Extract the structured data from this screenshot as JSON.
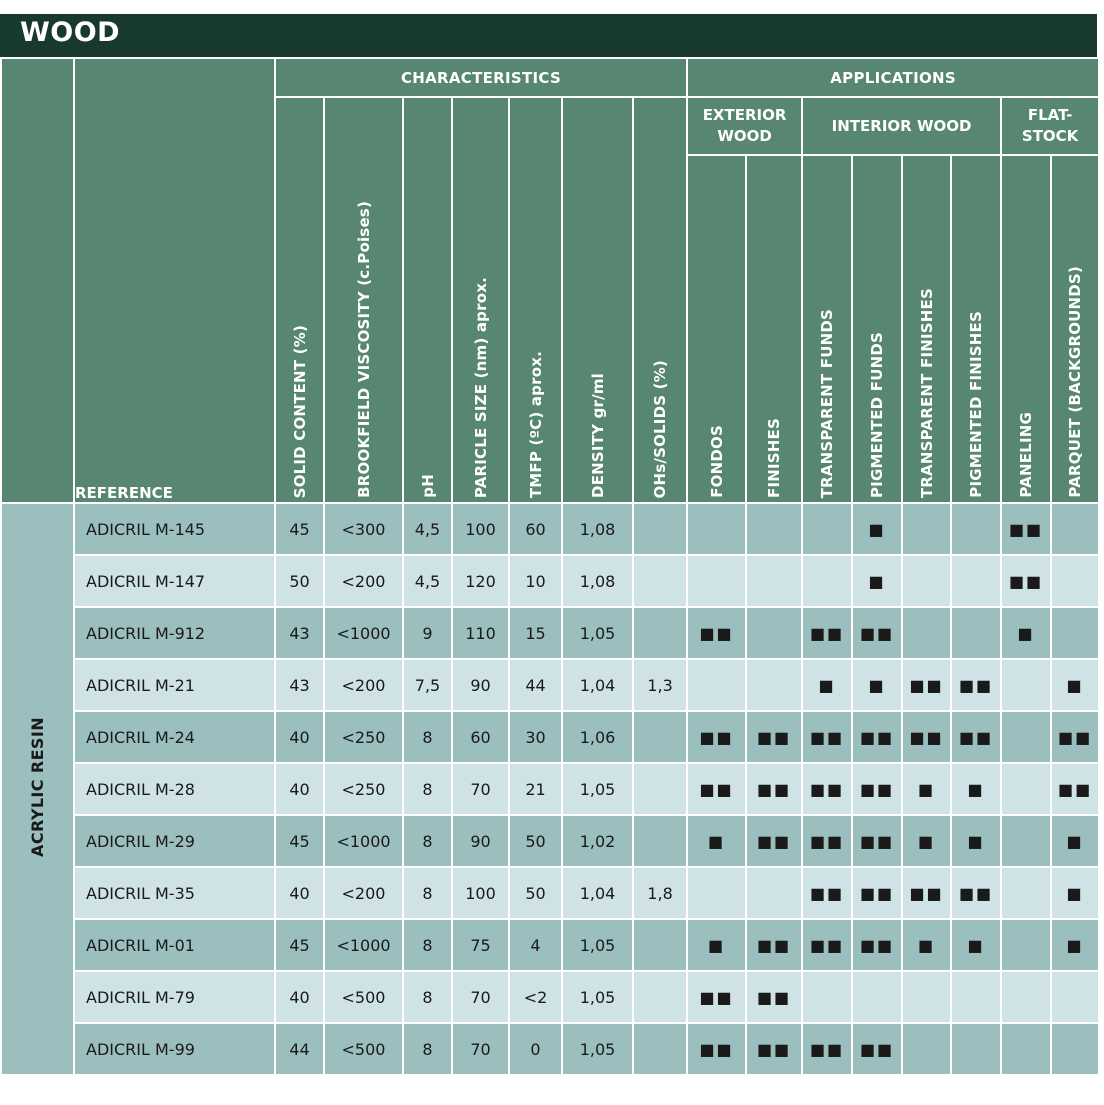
{
  "title": "WOOD",
  "side_label": "ACRYLIC RESIN",
  "headers": {
    "characteristics": "CHARACTERISTICS",
    "applications": "APPLICATIONS",
    "exterior_wood": "EXTERIOR WOOD",
    "interior_wood": "INTERIOR WOOD",
    "flat_stock": "FLAT-STOCK",
    "reference": "REFERENCE"
  },
  "columns": {
    "solid": "SOLID CONTENT (%)",
    "viscosity": "BROOKFIELD VISCOSITY  (c.Poises)",
    "ph": "pH",
    "particle": "PARICLE SIZE (nm) aprox.",
    "tmfp": "TMFP (ºC) aprox.",
    "density": "DENSITY gr/ml",
    "ohs": "OHs/SOLIDS (%)",
    "fondos": "FONDOS",
    "finishes": "FINISHES",
    "transparent_funds": "TRANSPARENT FUNDS",
    "pigmented_funds": "PIGMENTED FUNDS",
    "transparent_finishes": "TRANSPARENT FINISHES",
    "pigmented_finishes": "PIGMENTED FINISHES",
    "paneling": "PANELING",
    "parquet": "PARQUET (BACKGROUNDS)"
  },
  "rows": [
    {
      "ref": "ADICRIL M-145",
      "solid": "45",
      "visc": "<300",
      "ph": "4,5",
      "particle": "100",
      "tmfp": "60",
      "density": "1,08",
      "ohs": "",
      "fondos": "",
      "finishes": "",
      "tf": "",
      "pf": "■",
      "tfin": "",
      "pfin": "",
      "panel": "■■",
      "parquet": ""
    },
    {
      "ref": "ADICRIL M-147",
      "solid": "50",
      "visc": "<200",
      "ph": "4,5",
      "particle": "120",
      "tmfp": "10",
      "density": "1,08",
      "ohs": "",
      "fondos": "",
      "finishes": "",
      "tf": "",
      "pf": "■",
      "tfin": "",
      "pfin": "",
      "panel": "■■",
      "parquet": ""
    },
    {
      "ref": "ADICRIL M-912",
      "solid": "43",
      "visc": "<1000",
      "ph": "9",
      "particle": "110",
      "tmfp": "15",
      "density": "1,05",
      "ohs": "",
      "fondos": "■■",
      "finishes": "",
      "tf": "■■",
      "pf": "■■",
      "tfin": "",
      "pfin": "",
      "panel": "■",
      "parquet": ""
    },
    {
      "ref": "ADICRIL M-21",
      "solid": "43",
      "visc": "<200",
      "ph": "7,5",
      "particle": "90",
      "tmfp": "44",
      "density": "1,04",
      "ohs": "1,3",
      "fondos": "",
      "finishes": "",
      "tf": "■",
      "pf": "■",
      "tfin": "■■",
      "pfin": "■■",
      "panel": "",
      "parquet": "■"
    },
    {
      "ref": "ADICRIL M-24",
      "solid": "40",
      "visc": "<250",
      "ph": "8",
      "particle": "60",
      "tmfp": "30",
      "density": "1,06",
      "ohs": "",
      "fondos": "■■",
      "finishes": "■■",
      "tf": "■■",
      "pf": "■■",
      "tfin": "■■",
      "pfin": "■■",
      "panel": "",
      "parquet": "■■"
    },
    {
      "ref": "ADICRIL M-28",
      "solid": "40",
      "visc": "<250",
      "ph": "8",
      "particle": "70",
      "tmfp": "21",
      "density": "1,05",
      "ohs": "",
      "fondos": "■■",
      "finishes": "■■",
      "tf": "■■",
      "pf": "■■",
      "tfin": "■",
      "pfin": "■",
      "panel": "",
      "parquet": "■■"
    },
    {
      "ref": "ADICRIL M-29",
      "solid": "45",
      "visc": "<1000",
      "ph": "8",
      "particle": "90",
      "tmfp": "50",
      "density": "1,02",
      "ohs": "",
      "fondos": "■",
      "finishes": "■■",
      "tf": "■■",
      "pf": "■■",
      "tfin": "■",
      "pfin": "■",
      "panel": "",
      "parquet": "■"
    },
    {
      "ref": "ADICRIL M-35",
      "solid": "40",
      "visc": "<200",
      "ph": "8",
      "particle": "100",
      "tmfp": "50",
      "density": "1,04",
      "ohs": "1,8",
      "fondos": "",
      "finishes": "",
      "tf": "■■",
      "pf": "■■",
      "tfin": "■■",
      "pfin": "■■",
      "panel": "",
      "parquet": "■"
    },
    {
      "ref": "ADICRIL M-01",
      "solid": "45",
      "visc": "<1000",
      "ph": "8",
      "particle": "75",
      "tmfp": "4",
      "density": "1,05",
      "ohs": "",
      "fondos": "■",
      "finishes": "■■",
      "tf": "■■",
      "pf": "■■",
      "tfin": "■",
      "pfin": "■",
      "panel": "",
      "parquet": "■"
    },
    {
      "ref": "ADICRIL M-79",
      "solid": "40",
      "visc": "<500",
      "ph": "8",
      "particle": "70",
      "tmfp": "<2",
      "density": "1,05",
      "ohs": "",
      "fondos": "■■",
      "finishes": "■■",
      "tf": "",
      "pf": "",
      "tfin": "",
      "pfin": "",
      "panel": "",
      "parquet": ""
    },
    {
      "ref": "ADICRIL M-99",
      "solid": "44",
      "visc": "<500",
      "ph": "8",
      "particle": "70",
      "tmfp": "0",
      "density": "1,05",
      "ohs": "",
      "fondos": "■■",
      "finishes": "■■",
      "tf": "■■",
      "pf": "■■",
      "tfin": "",
      "pfin": "",
      "panel": "",
      "parquet": ""
    }
  ]
}
